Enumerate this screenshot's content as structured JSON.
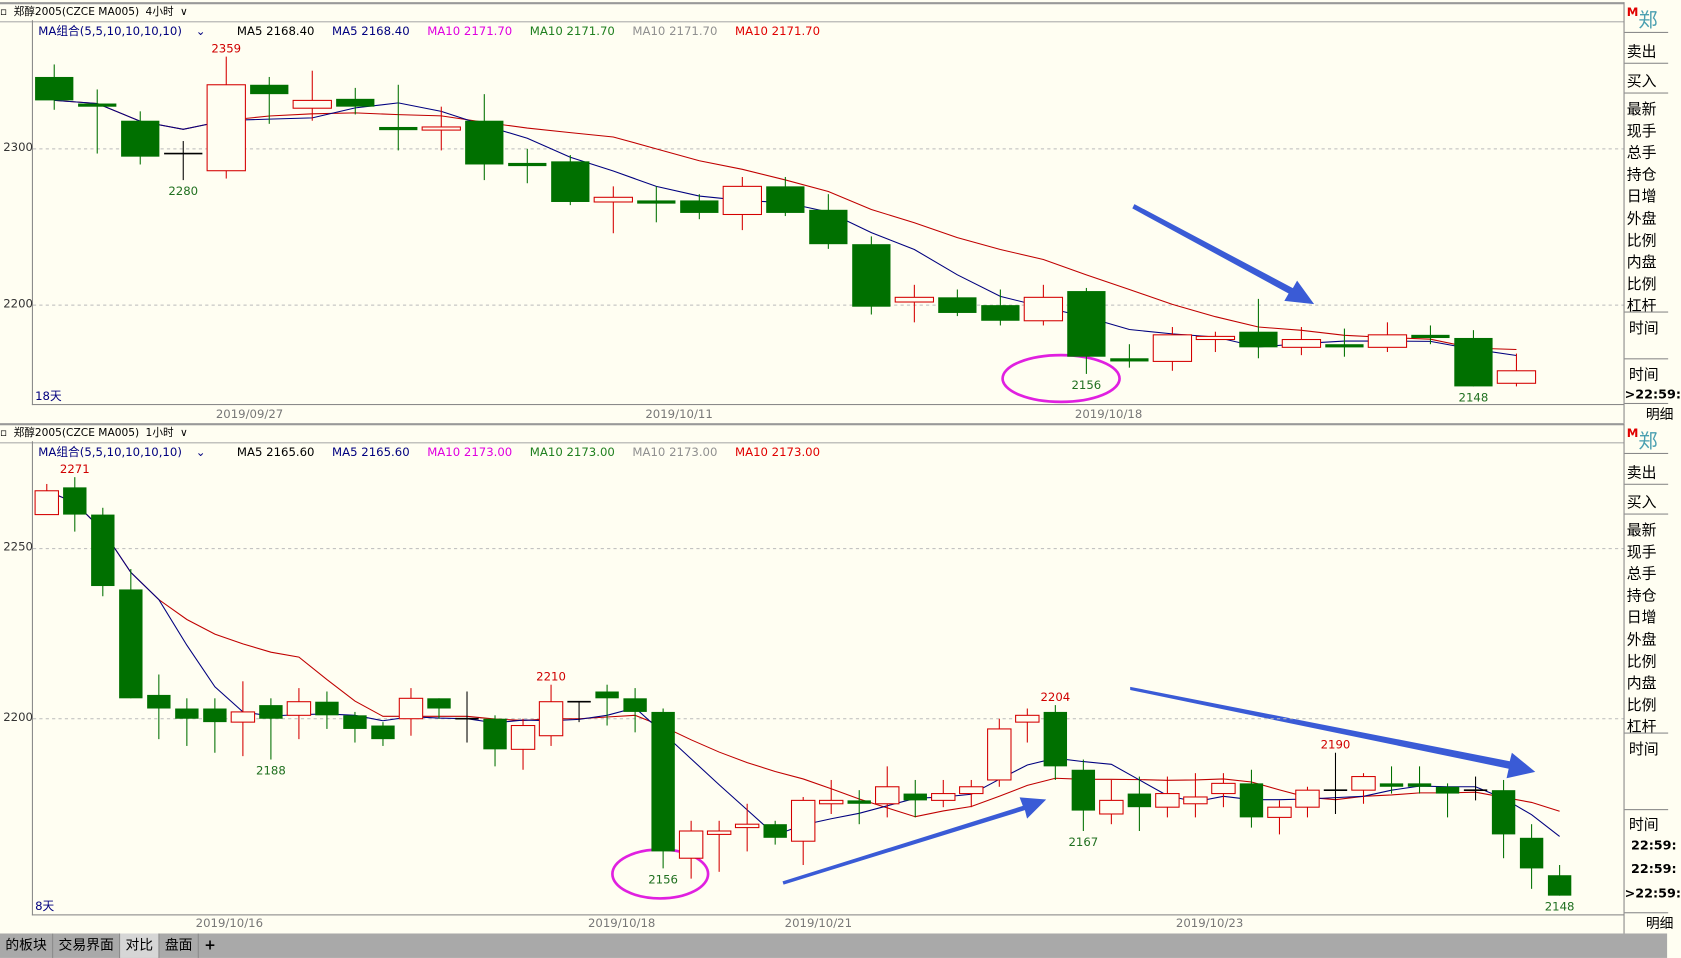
{
  "colors": {
    "up": "#d40000",
    "down": "#007000",
    "doji": "#000000",
    "ma5": "#00007f",
    "ma10": "#c00000",
    "annotation_circle": "#e020e0",
    "arrow": "#3a5bd6",
    "background": "#fffef2"
  },
  "top": {
    "header": {
      "icon": "square-icon",
      "symbol": "郑醇2005(CZCE MA005)",
      "period": "4小时",
      "dropdown_icon": "chevron-down-icon"
    },
    "legend": {
      "group": "MA组合(5,5,10,10,10,10)",
      "items": [
        "MA5 2168.40",
        "MA5 2168.40",
        "MA10 2171.70",
        "MA10 2171.70",
        "MA10 2171.70",
        "MA10 2171.70"
      ],
      "item_colors": [
        "#000000",
        "#00007f",
        "#e000e0",
        "#208020",
        "#909090",
        "#e00000"
      ]
    },
    "y_ticks": [
      "2300",
      "2200"
    ],
    "dates": [
      "2019/09/27",
      "2019/10/11",
      "2019/10/18"
    ],
    "days_label": "18天",
    "candles": [
      [
        2346,
        2354,
        2325,
        2331
      ],
      [
        2329,
        2338,
        2297,
        2327
      ],
      [
        2318,
        2324,
        2290,
        2295
      ],
      [
        2297,
        2305,
        2280,
        2297
      ],
      [
        2286,
        2359,
        2281,
        2341
      ],
      [
        2341,
        2346,
        2316,
        2335
      ],
      [
        2326,
        2350,
        2318,
        2331
      ],
      [
        2332,
        2339,
        2322,
        2327
      ],
      [
        2314,
        2341,
        2299,
        2313
      ],
      [
        2312,
        2327,
        2299,
        2314
      ],
      [
        2318,
        2335,
        2280,
        2290
      ],
      [
        2291,
        2300,
        2278,
        2290
      ],
      [
        2292,
        2296,
        2264,
        2266
      ],
      [
        2266,
        2276,
        2246,
        2269
      ],
      [
        2267,
        2276,
        2253,
        2265
      ],
      [
        2267,
        2271,
        2255,
        2259
      ],
      [
        2258,
        2282,
        2248,
        2276
      ],
      [
        2276,
        2282,
        2257,
        2259
      ],
      [
        2261,
        2271,
        2236,
        2239
      ],
      [
        2239,
        2244,
        2194,
        2199
      ],
      [
        2202,
        2213,
        2189,
        2205
      ],
      [
        2205,
        2210,
        2193,
        2195
      ],
      [
        2200,
        2210,
        2187,
        2190
      ],
      [
        2190,
        2213,
        2187,
        2205
      ],
      [
        2209,
        2211,
        2156,
        2167
      ],
      [
        2166,
        2175,
        2160,
        2165
      ],
      [
        2164,
        2186,
        2158,
        2181
      ],
      [
        2178,
        2183,
        2170,
        2180
      ],
      [
        2183,
        2204,
        2166,
        2173
      ],
      [
        2173,
        2186,
        2168,
        2178
      ],
      [
        2175,
        2185,
        2167,
        2173
      ],
      [
        2173,
        2189,
        2170,
        2181
      ],
      [
        2181,
        2187,
        2175,
        2179
      ],
      [
        2179,
        2184,
        2148,
        2148
      ],
      [
        2150,
        2169,
        2148,
        2158
      ]
    ],
    "marks": [
      {
        "idx": 4,
        "price": "2359",
        "type": "high"
      },
      {
        "idx": 3,
        "price": "2280",
        "type": "low"
      },
      {
        "idx": 24,
        "price": "2156",
        "type": "low"
      },
      {
        "idx": 33,
        "price": "2148",
        "type": "low"
      }
    ]
  },
  "bottom": {
    "header": {
      "icon": "square-icon",
      "symbol": "郑醇2005(CZCE MA005)",
      "period": "1小时",
      "dropdown_icon": "chevron-down-icon"
    },
    "legend": {
      "group": "MA组合(5,5,10,10,10,10)",
      "items": [
        "MA5 2165.60",
        "MA5 2165.60",
        "MA10 2173.00",
        "MA10 2173.00",
        "MA10 2173.00",
        "MA10 2173.00"
      ],
      "item_colors": [
        "#000000",
        "#00007f",
        "#e000e0",
        "#208020",
        "#909090",
        "#e00000"
      ]
    },
    "y_ticks": [
      "2250",
      "2200"
    ],
    "dates": [
      "2019/10/16",
      "2019/10/18",
      "2019/10/21",
      "2019/10/23"
    ],
    "days_label": "8天",
    "candles": [
      [
        2260,
        2269,
        2260,
        2267
      ],
      [
        2268,
        2271,
        2255,
        2260
      ],
      [
        2260,
        2262,
        2236,
        2239
      ],
      [
        2238,
        2244,
        2206,
        2206
      ],
      [
        2207,
        2213,
        2194,
        2203
      ],
      [
        2203,
        2206,
        2192,
        2200
      ],
      [
        2203,
        2206,
        2190,
        2199
      ],
      [
        2199,
        2211,
        2189,
        2202
      ],
      [
        2204,
        2206,
        2188,
        2200
      ],
      [
        2201,
        2209,
        2194,
        2205
      ],
      [
        2205,
        2208,
        2197,
        2201
      ],
      [
        2201,
        2202,
        2193,
        2197
      ],
      [
        2198,
        2199,
        2192,
        2194
      ],
      [
        2200,
        2209,
        2195,
        2206
      ],
      [
        2206,
        2206,
        2200,
        2203
      ],
      [
        2200,
        2208,
        2193,
        2200
      ],
      [
        2200,
        2201,
        2186,
        2191
      ],
      [
        2191,
        2200,
        2185,
        2198
      ],
      [
        2195,
        2210,
        2192,
        2205
      ],
      [
        2205,
        2205,
        2199,
        2205
      ],
      [
        2208,
        2210,
        2198,
        2206
      ],
      [
        2206,
        2209,
        2196,
        2202
      ],
      [
        2202,
        2203,
        2156,
        2161
      ],
      [
        2159,
        2170,
        2153,
        2167
      ],
      [
        2166,
        2170,
        2155,
        2167
      ],
      [
        2168,
        2175,
        2161,
        2169
      ],
      [
        2169,
        2170,
        2163,
        2165
      ],
      [
        2164,
        2177,
        2157,
        2176
      ],
      [
        2175,
        2182,
        2172,
        2176
      ],
      [
        2176,
        2179,
        2169,
        2175
      ],
      [
        2175,
        2186,
        2171,
        2180
      ],
      [
        2178,
        2182,
        2171,
        2176
      ],
      [
        2176,
        2182,
        2174,
        2178
      ],
      [
        2178,
        2182,
        2174,
        2180
      ],
      [
        2182,
        2200,
        2180,
        2197
      ],
      [
        2199,
        2203,
        2193,
        2201
      ],
      [
        2202,
        2204,
        2182,
        2186
      ],
      [
        2185,
        2188,
        2167,
        2173
      ],
      [
        2172,
        2182,
        2169,
        2176
      ],
      [
        2178,
        2183,
        2167,
        2174
      ],
      [
        2174,
        2183,
        2171,
        2178
      ],
      [
        2175,
        2184,
        2171,
        2177
      ],
      [
        2178,
        2184,
        2174,
        2181
      ],
      [
        2181,
        2185,
        2168,
        2171
      ],
      [
        2171,
        2176,
        2166,
        2174
      ],
      [
        2174,
        2180,
        2171,
        2179
      ],
      [
        2179,
        2190,
        2172,
        2179
      ],
      [
        2179,
        2184,
        2175,
        2183
      ],
      [
        2181,
        2186,
        2178,
        2180
      ],
      [
        2181,
        2186,
        2178,
        2180
      ],
      [
        2180,
        2181,
        2171,
        2178
      ],
      [
        2179,
        2183,
        2176,
        2179
      ],
      [
        2179,
        2182,
        2159,
        2166
      ],
      [
        2165,
        2169,
        2150,
        2156
      ],
      [
        2154,
        2157,
        2148,
        2148
      ]
    ],
    "marks": [
      {
        "idx": 1,
        "price": "2271",
        "type": "high"
      },
      {
        "idx": 8,
        "price": "2188",
        "type": "low"
      },
      {
        "idx": 18,
        "price": "2210",
        "type": "high"
      },
      {
        "idx": 22,
        "price": "2156",
        "type": "low"
      },
      {
        "idx": 36,
        "price": "2204",
        "type": "high"
      },
      {
        "idx": 37,
        "price": "2167",
        "type": "low"
      },
      {
        "idx": 46,
        "price": "2190",
        "type": "high"
      },
      {
        "idx": 54,
        "price": "2148",
        "type": "low"
      }
    ]
  },
  "right_panel": {
    "top": {
      "exchange_badge": "M",
      "title": "郑",
      "sell": "卖出",
      "buy": "买入",
      "fields": [
        "最新",
        "现手",
        "总手",
        "持仓",
        "日增",
        "外盘",
        "比例",
        "内盘",
        "比例",
        "杠杆"
      ],
      "time_header_1": "时间",
      "time_header_2": "时间",
      "times": [
        ">22:59:"
      ],
      "detail_tab": "明细"
    },
    "bottom": {
      "exchange_badge": "M",
      "title": "郑",
      "sell": "卖出",
      "buy": "买入",
      "fields": [
        "最新",
        "现手",
        "总手",
        "持仓",
        "日增",
        "外盘",
        "比例",
        "内盘",
        "比例",
        "杠杆"
      ],
      "time_header_1": "时间",
      "time_header_2": "时间",
      "times": [
        "22:59:",
        "22:59:",
        ">22:59:"
      ],
      "detail_tab": "明细"
    }
  },
  "tabs": [
    {
      "label": "的板块",
      "active": false
    },
    {
      "label": "交易界面",
      "active": false
    },
    {
      "label": "对比",
      "active": true
    },
    {
      "label": "盘面",
      "active": false
    },
    {
      "label": "+",
      "active": false
    }
  ]
}
